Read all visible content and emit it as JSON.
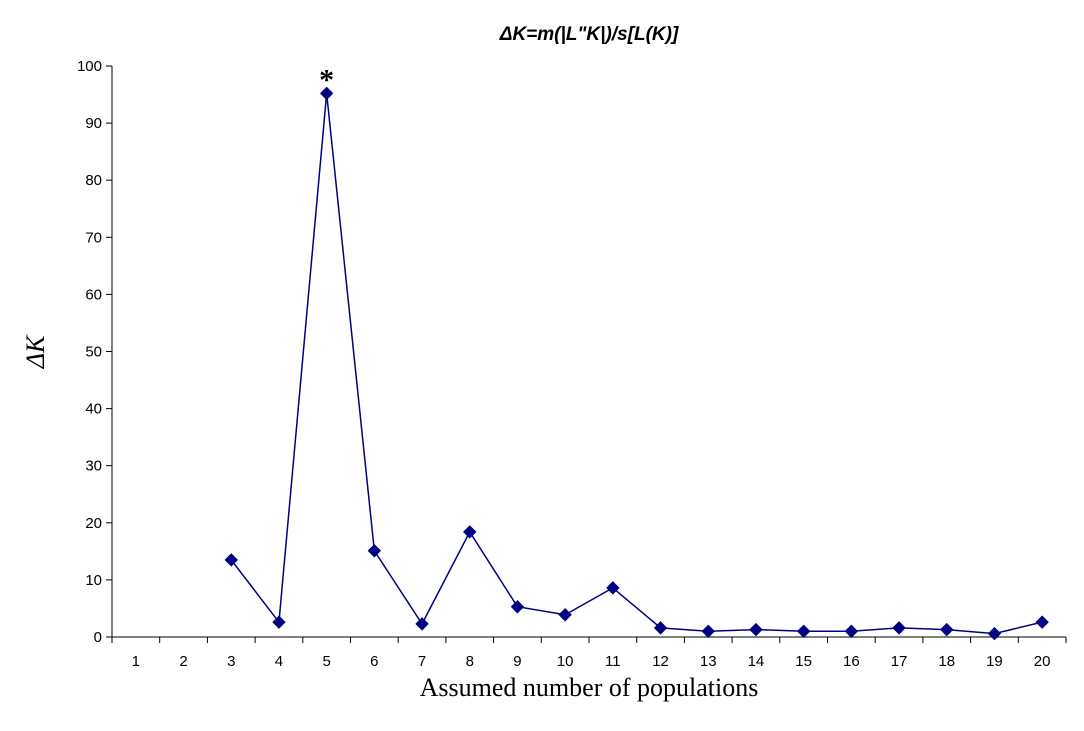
{
  "chart_data": {
    "type": "line",
    "title": "ΔK=m(|L\"K|)/s[L(K)]",
    "xlabel": "Assumed number of populations",
    "ylabel": "ΔK",
    "categories": [
      "1",
      "2",
      "3",
      "4",
      "5",
      "6",
      "7",
      "8",
      "9",
      "10",
      "11",
      "12",
      "13",
      "14",
      "15",
      "16",
      "17",
      "18",
      "19",
      "20"
    ],
    "series": [
      {
        "values": [
          null,
          null,
          13.5,
          2.6,
          95.2,
          15.1,
          2.3,
          18.4,
          5.3,
          3.9,
          8.6,
          1.6,
          1.0,
          1.3,
          1.0,
          1.0,
          1.6,
          1.3,
          0.6,
          2.6
        ],
        "color": "#000080"
      }
    ],
    "ylim": [
      0,
      100
    ],
    "yticks": [
      0,
      10,
      20,
      30,
      40,
      50,
      60,
      70,
      80,
      90,
      100
    ],
    "grid": false,
    "annotations": [
      {
        "text": "*",
        "category": "5"
      }
    ]
  }
}
